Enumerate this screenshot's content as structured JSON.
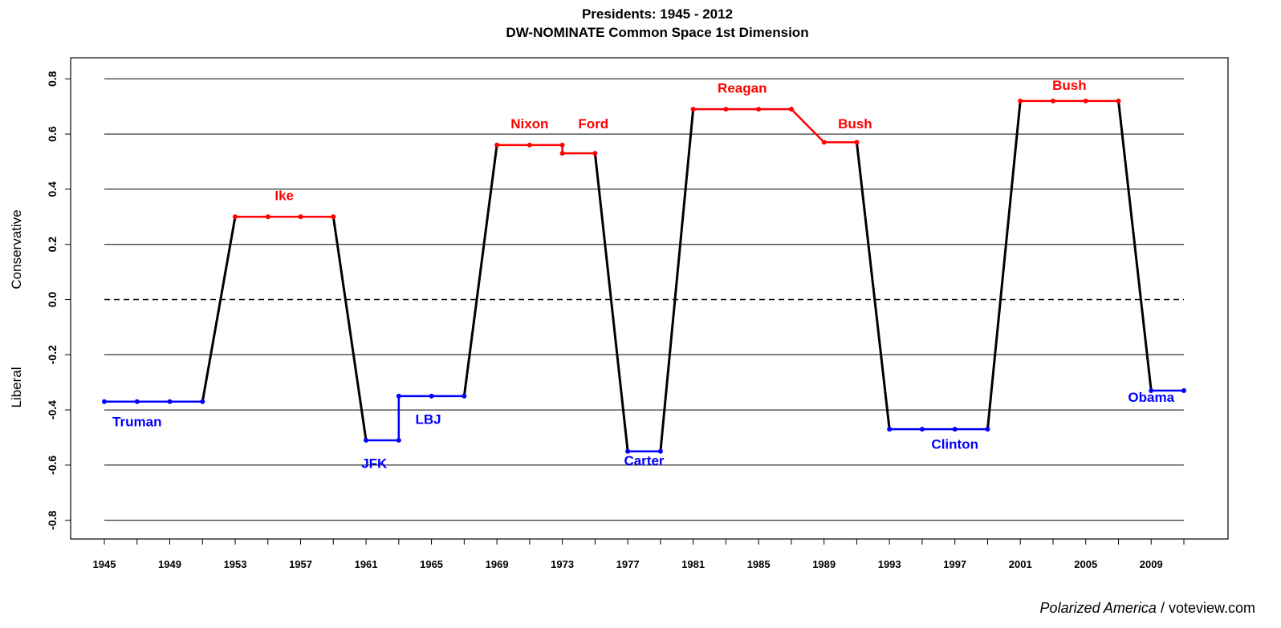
{
  "chart_data": {
    "type": "line",
    "title": [
      "Presidents: 1945 - 2012",
      "DW-NOMINATE Common Space 1st Dimension"
    ],
    "ylabel_top": "Conservative",
    "ylabel_bottom": "Liberal",
    "ylim": [
      -0.88,
      0.88
    ],
    "xlim": [
      1944,
      2012
    ],
    "y_ticks": [
      {
        "v": 0.8,
        "label": "0.8"
      },
      {
        "v": 0.6,
        "label": "0.6"
      },
      {
        "v": 0.4,
        "label": "0.4"
      },
      {
        "v": 0.2,
        "label": "0.2"
      },
      {
        "v": 0.0,
        "label": "0.0"
      },
      {
        "v": -0.2,
        "label": "-0.2"
      },
      {
        "v": -0.4,
        "label": "-0.4"
      },
      {
        "v": -0.6,
        "label": "-0.6"
      },
      {
        "v": -0.8,
        "label": "-0.8"
      }
    ],
    "x_ticks_minor": [
      1945,
      1947,
      1949,
      1951,
      1953,
      1955,
      1957,
      1959,
      1961,
      1963,
      1965,
      1967,
      1969,
      1971,
      1973,
      1975,
      1977,
      1979,
      1981,
      1983,
      1985,
      1987,
      1989,
      1991,
      1993,
      1995,
      1997,
      1999,
      2001,
      2003,
      2005,
      2007,
      2009,
      2011
    ],
    "x_tick_labels": [
      "1945",
      "1949",
      "1953",
      "1957",
      "1961",
      "1965",
      "1969",
      "1973",
      "1977",
      "1981",
      "1985",
      "1989",
      "1993",
      "1997",
      "2001",
      "2005",
      "2009"
    ],
    "gridlines": [
      0.8,
      0.6,
      0.4,
      0.2,
      -0.2,
      -0.4,
      -0.6,
      -0.8
    ],
    "zero_line": 0.0,
    "colors": {
      "democrat": "#0000ff",
      "republican": "#ff0000",
      "transition": "#000000"
    },
    "presidents": [
      {
        "name": "Truman",
        "party": "D",
        "x": [
          1945,
          1947,
          1949,
          1951
        ],
        "y": -0.37
      },
      {
        "name": "Ike",
        "party": "R",
        "x": [
          1953,
          1955,
          1957,
          1959
        ],
        "y": 0.3
      },
      {
        "name": "JFK",
        "party": "D",
        "x": [
          1961,
          1963
        ],
        "y": -0.51
      },
      {
        "name": "LBJ",
        "party": "D",
        "x": [
          1963,
          1965,
          1967
        ],
        "y": -0.35
      },
      {
        "name": "Nixon",
        "party": "R",
        "x": [
          1969,
          1971,
          1973
        ],
        "y": 0.56
      },
      {
        "name": "Ford",
        "party": "R",
        "x": [
          1973,
          1975
        ],
        "y": 0.53
      },
      {
        "name": "Carter",
        "party": "D",
        "x": [
          1977,
          1979
        ],
        "y": -0.55
      },
      {
        "name": "Reagan",
        "party": "R",
        "x": [
          1981,
          1983,
          1985,
          1987
        ],
        "y": 0.69
      },
      {
        "name": "Bush",
        "party": "R",
        "x": [
          1989,
          1991
        ],
        "y": 0.57
      },
      {
        "name": "Clinton",
        "party": "D",
        "x": [
          1993,
          1995,
          1997,
          1999
        ],
        "y": -0.47
      },
      {
        "name": "Bush",
        "party": "R",
        "x": [
          2001,
          2003,
          2005,
          2007
        ],
        "y": 0.72
      },
      {
        "name": "Obama",
        "party": "D",
        "x": [
          2009,
          2011
        ],
        "y": -0.33
      }
    ],
    "series": [
      {
        "from": [
          1951,
          -0.37
        ],
        "to": [
          1953,
          0.3
        ],
        "kind": "transition"
      },
      {
        "from": [
          1959,
          0.3
        ],
        "to": [
          1961,
          -0.51
        ],
        "kind": "transition"
      },
      {
        "from": [
          1963,
          -0.51
        ],
        "to": [
          1963,
          -0.35
        ],
        "kind": "D"
      },
      {
        "from": [
          1967,
          -0.35
        ],
        "to": [
          1969,
          0.56
        ],
        "kind": "transition"
      },
      {
        "from": [
          1973,
          0.56
        ],
        "to": [
          1973,
          0.53
        ],
        "kind": "R"
      },
      {
        "from": [
          1975,
          0.53
        ],
        "to": [
          1977,
          -0.55
        ],
        "kind": "transition"
      },
      {
        "from": [
          1979,
          -0.55
        ],
        "to": [
          1981,
          0.69
        ],
        "kind": "transition"
      },
      {
        "from": [
          1987,
          0.69
        ],
        "to": [
          1989,
          0.57
        ],
        "kind": "R"
      },
      {
        "from": [
          1991,
          0.57
        ],
        "to": [
          1993,
          -0.47
        ],
        "kind": "transition"
      },
      {
        "from": [
          1999,
          -0.47
        ],
        "to": [
          2001,
          0.72
        ],
        "kind": "transition"
      },
      {
        "from": [
          2007,
          0.72
        ],
        "to": [
          2009,
          -0.33
        ],
        "kind": "transition"
      }
    ],
    "labels": [
      {
        "text": "Truman",
        "party": "D",
        "x": 1947.0,
        "y": -0.46
      },
      {
        "text": "Ike",
        "party": "R",
        "x": 1956.0,
        "y": 0.36
      },
      {
        "text": "JFK",
        "party": "D",
        "x": 1961.5,
        "y": -0.61
      },
      {
        "text": "LBJ",
        "party": "D",
        "x": 1964.8,
        "y": -0.45
      },
      {
        "text": "Nixon",
        "party": "R",
        "x": 1971.0,
        "y": 0.62
      },
      {
        "text": "Ford",
        "party": "R",
        "x": 1974.9,
        "y": 0.62
      },
      {
        "text": "Carter",
        "party": "D",
        "x": 1978.0,
        "y": -0.6
      },
      {
        "text": "Reagan",
        "party": "R",
        "x": 1984.0,
        "y": 0.75
      },
      {
        "text": "Bush",
        "party": "R",
        "x": 1990.9,
        "y": 0.62
      },
      {
        "text": "Clinton",
        "party": "D",
        "x": 1997.0,
        "y": -0.54
      },
      {
        "text": "Bush",
        "party": "R",
        "x": 2004.0,
        "y": 0.76
      },
      {
        "text": "Obama",
        "party": "D",
        "x": 2009.0,
        "y": -0.37
      }
    ]
  },
  "credit": {
    "source": "Polarized America",
    "separator": " / ",
    "site": "voteview.com"
  }
}
